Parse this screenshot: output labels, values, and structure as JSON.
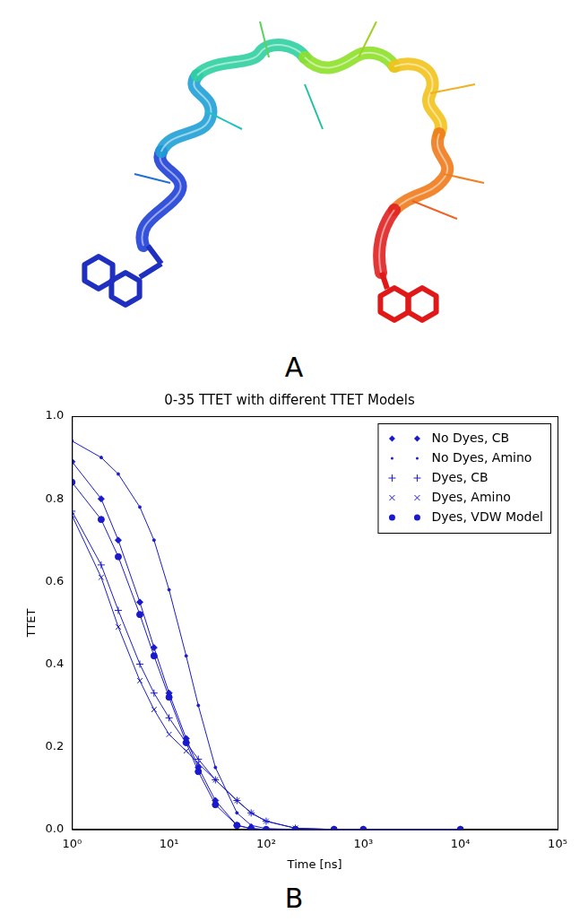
{
  "panel_labels": [
    "A",
    "B"
  ],
  "chart_data": {
    "type": "line",
    "title": "0-35 TTET with different TTET Models",
    "x_label": "Time [ns]",
    "y_label": "TTET",
    "log": "x",
    "grid": false,
    "legend": "upper right",
    "x": [
      1,
      2,
      3,
      5,
      7,
      10,
      15,
      20,
      30,
      50,
      70,
      100,
      200,
      500,
      1000,
      10000
    ],
    "xlim": [
      1,
      100000
    ],
    "xticks": [
      {
        "value": 1,
        "label": "10⁰"
      },
      {
        "value": 10,
        "label": "10¹"
      },
      {
        "value": 100,
        "label": "10²"
      },
      {
        "value": 1000,
        "label": "10³"
      },
      {
        "value": 10000,
        "label": "10⁴"
      },
      {
        "value": 100000,
        "label": "10⁵"
      }
    ],
    "ylim": [
      0,
      1
    ],
    "yticks": [
      {
        "value": 0,
        "label": "0.0"
      },
      {
        "value": 0.2,
        "label": "0.2"
      },
      {
        "value": 0.4,
        "label": "0.4"
      },
      {
        "value": 0.6,
        "label": "0.6"
      },
      {
        "value": 0.8,
        "label": "0.8"
      },
      {
        "value": 1,
        "label": "1.0"
      }
    ],
    "series": [
      {
        "name": "No Dyes, CB",
        "color": "#1a1acc",
        "marker": "diamond",
        "values": [
          0.89,
          0.8,
          0.7,
          0.55,
          0.44,
          0.33,
          0.22,
          0.15,
          0.07,
          0.01,
          0.002,
          0,
          0,
          0,
          0,
          0
        ]
      },
      {
        "name": "No Dyes, Amino",
        "color": "#1a1acc",
        "marker": "point",
        "values": [
          0.94,
          0.9,
          0.86,
          0.78,
          0.7,
          0.58,
          0.42,
          0.3,
          0.15,
          0.04,
          0.01,
          0.002,
          0,
          0,
          0,
          0
        ]
      },
      {
        "name": "Dyes, CB",
        "color": "#1a1acc",
        "marker": "plus",
        "values": [
          0.77,
          0.64,
          0.53,
          0.4,
          0.33,
          0.27,
          0.21,
          0.17,
          0.12,
          0.07,
          0.04,
          0.02,
          0.003,
          0,
          0,
          0
        ]
      },
      {
        "name": "Dyes, Amino",
        "color": "#1a1acc",
        "marker": "x",
        "values": [
          0.76,
          0.61,
          0.49,
          0.36,
          0.29,
          0.23,
          0.19,
          0.16,
          0.12,
          0.07,
          0.04,
          0.02,
          0.003,
          0,
          0,
          0
        ]
      },
      {
        "name": "Dyes, VDW Model",
        "color": "#1a1acc",
        "marker": "circle",
        "values": [
          0.84,
          0.75,
          0.66,
          0.52,
          0.42,
          0.32,
          0.21,
          0.14,
          0.06,
          0.01,
          0.002,
          0,
          0,
          0,
          0,
          0
        ]
      }
    ]
  }
}
